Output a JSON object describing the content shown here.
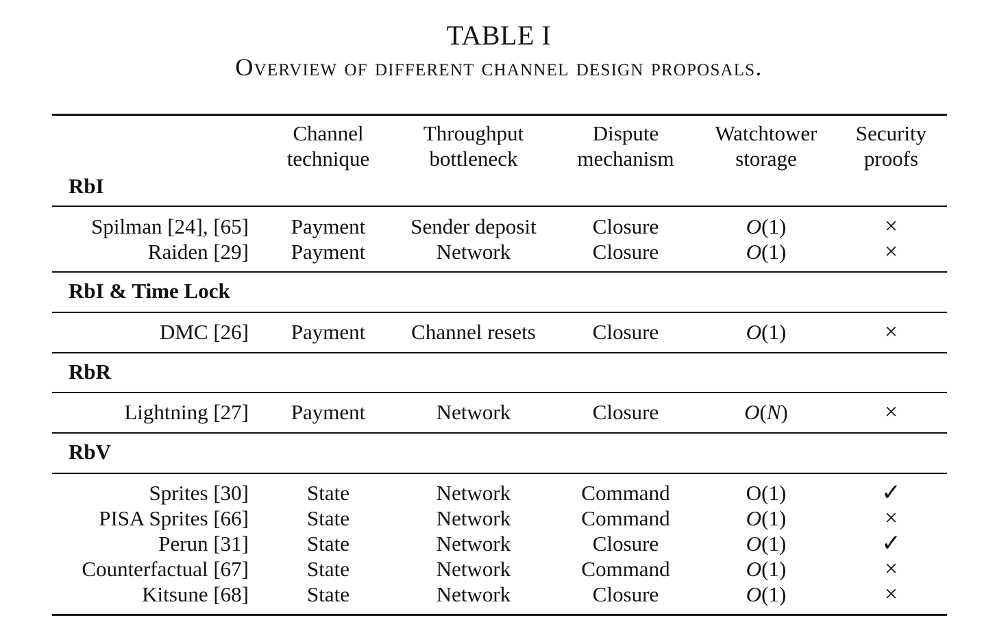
{
  "caption": {
    "title": "TABLE I",
    "subtitle": "Overview of different channel design proposals."
  },
  "header": {
    "channel_technique": [
      "Channel",
      "technique"
    ],
    "throughput_bottleneck": [
      "Throughput",
      "bottleneck"
    ],
    "dispute_mechanism": [
      "Dispute",
      "mechanism"
    ],
    "watchtower_storage": [
      "Watchtower",
      "storage"
    ],
    "security_proofs": [
      "Security",
      "proofs"
    ]
  },
  "groups": [
    {
      "label": "RbI",
      "rows": [
        {
          "name": "Spilman [24], [65]",
          "technique": "Payment",
          "bottleneck": "Sender deposit",
          "dispute": "Closure",
          "storage_fn": "O",
          "storage_arg": "1",
          "storage_italic": true,
          "security": "×"
        },
        {
          "name": "Raiden [29]",
          "technique": "Payment",
          "bottleneck": "Network",
          "dispute": "Closure",
          "storage_fn": "O",
          "storage_arg": "1",
          "storage_italic": true,
          "security": "×"
        }
      ]
    },
    {
      "label": "RbI & Time Lock",
      "rows": [
        {
          "name": "DMC [26]",
          "technique": "Payment",
          "bottleneck": "Channel resets",
          "dispute": "Closure",
          "storage_fn": "O",
          "storage_arg": "1",
          "storage_italic": true,
          "security": "×"
        }
      ]
    },
    {
      "label": "RbR",
      "rows": [
        {
          "name": "Lightning [27]",
          "technique": "Payment",
          "bottleneck": "Network",
          "dispute": "Closure",
          "storage_fn": "O",
          "storage_arg": "N",
          "storage_italic": true,
          "security": "×"
        }
      ]
    },
    {
      "label": "RbV",
      "rows": [
        {
          "name": "Sprites [30]",
          "technique": "State",
          "bottleneck": "Network",
          "dispute": "Command",
          "storage_fn": "O",
          "storage_arg": "1",
          "storage_italic": false,
          "security": "✓"
        },
        {
          "name": "PISA Sprites [66]",
          "technique": "State",
          "bottleneck": "Network",
          "dispute": "Command",
          "storage_fn": "O",
          "storage_arg": "1",
          "storage_italic": true,
          "security": "×"
        },
        {
          "name": "Perun [31]",
          "technique": "State",
          "bottleneck": "Network",
          "dispute": "Closure",
          "storage_fn": "O",
          "storage_arg": "1",
          "storage_italic": true,
          "security": "✓"
        },
        {
          "name": "Counterfactual [67]",
          "technique": "State",
          "bottleneck": "Network",
          "dispute": "Command",
          "storage_fn": "O",
          "storage_arg": "1",
          "storage_italic": true,
          "security": "×"
        },
        {
          "name": "Kitsune [68]",
          "technique": "State",
          "bottleneck": "Network",
          "dispute": "Closure",
          "storage_fn": "O",
          "storage_arg": "1",
          "storage_italic": true,
          "security": "×"
        }
      ]
    }
  ]
}
